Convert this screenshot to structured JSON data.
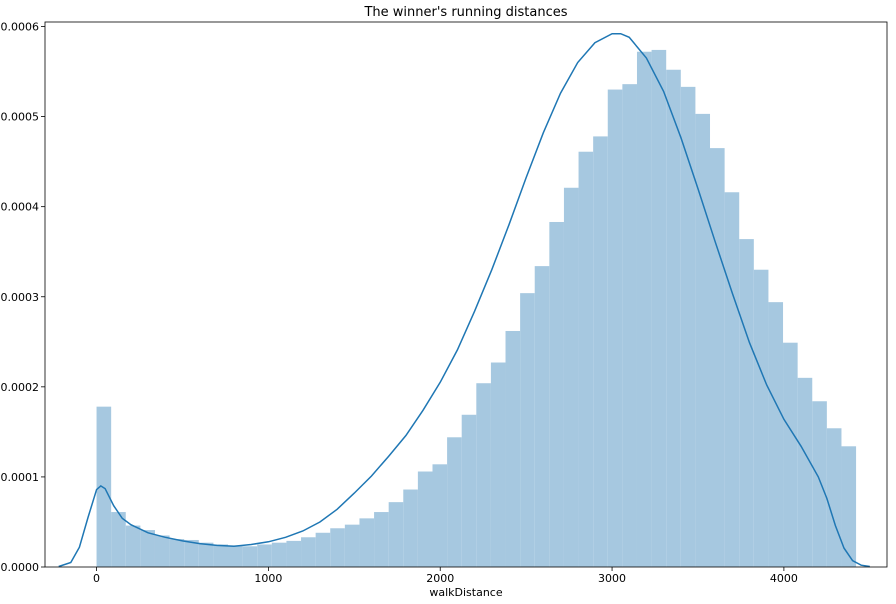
{
  "chart_data": {
    "type": "bar",
    "title": "The winner's running distances",
    "xlabel": "walkDistance",
    "ylabel": "",
    "xlim": [
      -300,
      4600
    ],
    "ylim": [
      0,
      0.000605
    ],
    "x_ticks": [
      0,
      1000,
      2000,
      3000,
      4000
    ],
    "y_ticks": [
      0,
      0.0001,
      0.0002,
      0.0003,
      0.0004,
      0.0005,
      0.0006
    ],
    "x_tick_labels": [
      "0",
      "1000",
      "2000",
      "3000",
      "4000"
    ],
    "y_tick_labels": [
      "0.0000",
      "0.0001",
      "0.0002",
      "0.0003",
      "0.0004",
      "0.0005",
      "0.0006"
    ],
    "grid": false,
    "legend": "none",
    "colors": {
      "bars": "#a6c8e0",
      "kde": "#1f77b4"
    },
    "histogram": {
      "bin_start": 0,
      "bin_width": 85,
      "densities": [
        0.000178,
        6.1e-05,
        4.6e-05,
        4.1e-05,
        3.5e-05,
        3.1e-05,
        3e-05,
        2.7e-05,
        2.5e-05,
        2.4e-05,
        2.3e-05,
        2.5e-05,
        2.7e-05,
        2.9e-05,
        3.3e-05,
        3.8e-05,
        4.3e-05,
        4.7e-05,
        5.4e-05,
        6.1e-05,
        7.2e-05,
        8.6e-05,
        0.000106,
        0.000114,
        0.000144,
        0.000169,
        0.000204,
        0.000227,
        0.000262,
        0.000304,
        0.000334,
        0.000383,
        0.000421,
        0.000461,
        0.000478,
        0.00053,
        0.000536,
        0.000572,
        0.000574,
        0.000552,
        0.000533,
        0.000503,
        0.000465,
        0.000416,
        0.000364,
        0.00033,
        0.000294,
        0.000249,
        0.00021,
        0.000184,
        0.000154,
        0.000134
      ]
    },
    "kde": {
      "x": [
        -220,
        -150,
        -100,
        -50,
        0,
        25,
        50,
        100,
        150,
        200,
        300,
        400,
        500,
        600,
        700,
        800,
        900,
        1000,
        1100,
        1200,
        1300,
        1400,
        1500,
        1600,
        1700,
        1800,
        1900,
        2000,
        2100,
        2200,
        2300,
        2400,
        2500,
        2600,
        2700,
        2800,
        2900,
        3000,
        3050,
        3100,
        3200,
        3300,
        3400,
        3500,
        3600,
        3700,
        3800,
        3900,
        4000,
        4100,
        4200,
        4250,
        4300,
        4350,
        4400,
        4450,
        4500
      ],
      "y": [
        5e-07,
        5e-06,
        2.2e-05,
        5.5e-05,
        8.6e-05,
        9e-05,
        8.7e-05,
        6.8e-05,
        5.4e-05,
        4.7e-05,
        3.8e-05,
        3.3e-05,
        2.9e-05,
        2.6e-05,
        2.4e-05,
        2.3e-05,
        2.5e-05,
        2.8e-05,
        3.3e-05,
        4e-05,
        5e-05,
        6.4e-05,
        8.2e-05,
        0.000101,
        0.000123,
        0.000146,
        0.000174,
        0.000205,
        0.000241,
        0.000284,
        0.00033,
        0.00038,
        0.000432,
        0.000482,
        0.000526,
        0.00056,
        0.000582,
        0.000592,
        0.000592,
        0.000588,
        0.000565,
        0.000528,
        0.000477,
        0.00042,
        0.000361,
        0.000304,
        0.000249,
        0.000202,
        0.000164,
        0.000134,
        0.0001,
        7.6e-05,
        4.6e-05,
        2.1e-05,
        7e-06,
        2e-06,
        5e-07
      ]
    }
  }
}
